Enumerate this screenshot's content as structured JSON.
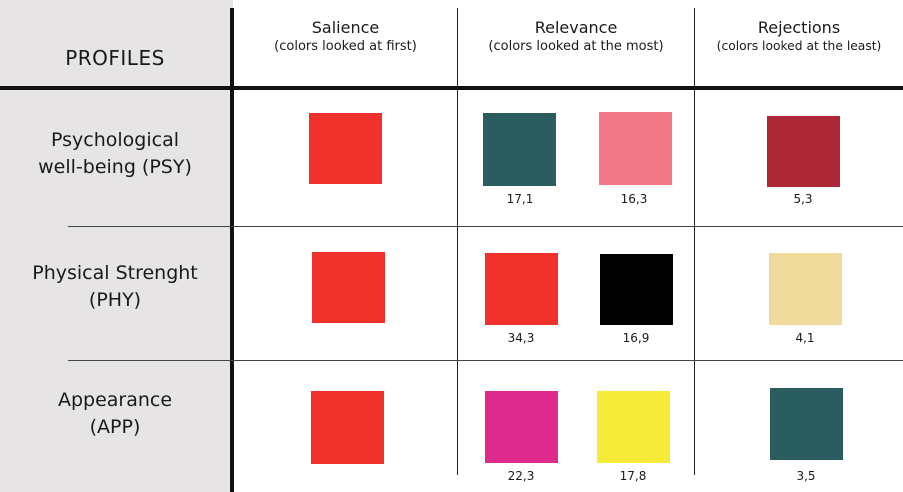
{
  "header": {
    "profiles": "PROFILES",
    "columns": [
      {
        "title": "Salience",
        "subtitle": "(colors looked at first)"
      },
      {
        "title": "Relevance",
        "subtitle": "(colors looked at the most)"
      },
      {
        "title": "Rejections",
        "subtitle": "(colors looked at the least)"
      }
    ]
  },
  "rows": [
    {
      "label_line1": "Psychological",
      "label_line2": "well-being  (PSY)",
      "salience": {
        "color": "#f0302a"
      },
      "relevance": [
        {
          "color": "#2a5c60",
          "value": "17,1"
        },
        {
          "color": "#f27888",
          "value": "16,3"
        }
      ],
      "rejection": {
        "color": "#ad2836",
        "value": "5,3"
      }
    },
    {
      "label_line1": "Physical Strenght",
      "label_line2": "(PHY)",
      "salience": {
        "color": "#f0302a"
      },
      "relevance": [
        {
          "color": "#f0302a",
          "value": "34,3"
        },
        {
          "color": "#000000",
          "value": "16,9"
        }
      ],
      "rejection": {
        "color": "#efdc9c",
        "value": "4,1"
      }
    },
    {
      "label_line1": "Appearance",
      "label_line2": "(APP)",
      "salience": {
        "color": "#f0302a"
      },
      "relevance": [
        {
          "color": "#dd2a8c",
          "value": "22,3"
        },
        {
          "color": "#f5eb38",
          "value": "17,8"
        }
      ],
      "rejection": {
        "color": "#2a5c60",
        "value": "3,5"
      }
    }
  ]
}
